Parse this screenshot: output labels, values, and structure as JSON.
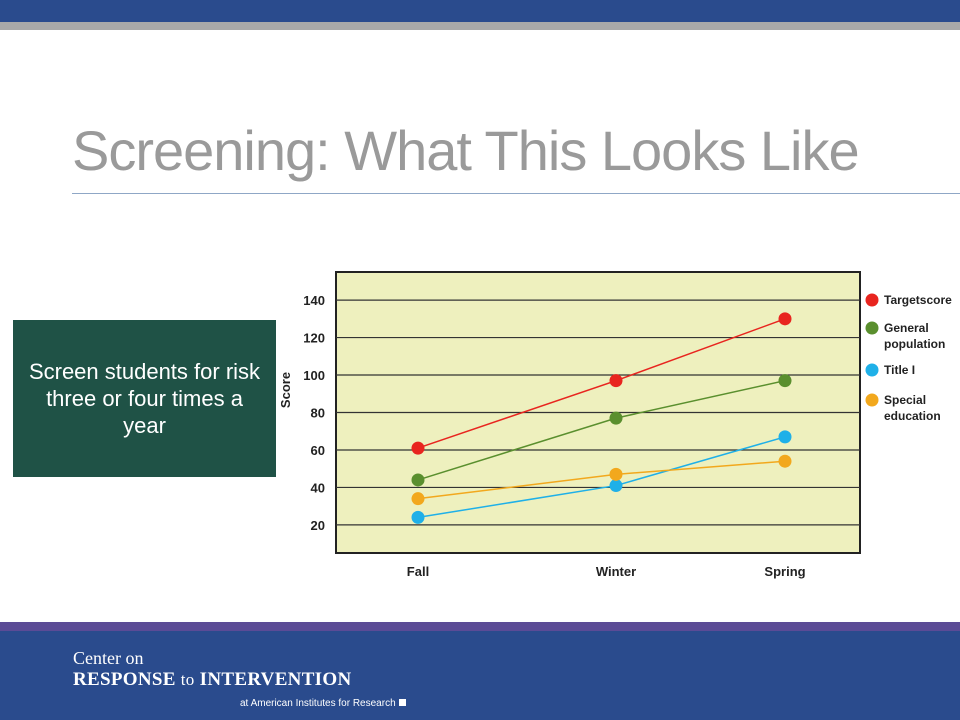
{
  "slide": {
    "title": "Screening: What This Looks Like",
    "callout": "Screen students for risk three or four times a year"
  },
  "footer": {
    "logo_line1": "Center on",
    "logo_word1": "RESPONSE",
    "logo_word2": "to",
    "logo_word3": "INTERVENTION",
    "logo_line3": "at American Institutes for Research"
  },
  "colors": {
    "header": "#2a4b8d",
    "footer_stripe": "#5b4b96",
    "callout_bg": "#1f5246",
    "plot_bg": "#eef0be",
    "target": "#e8251f",
    "general": "#5a8f2e",
    "title1": "#1fb0e8",
    "special": "#f2a81d"
  },
  "chart_data": {
    "type": "line",
    "categories": [
      "Fall",
      "Winter",
      "Spring"
    ],
    "series": [
      {
        "name": "Targetscore",
        "values": [
          61,
          97,
          130
        ],
        "color": "#e8251f"
      },
      {
        "name": "General population",
        "values": [
          44,
          77,
          97
        ],
        "color": "#5a8f2e"
      },
      {
        "name": "Title I",
        "values": [
          24,
          41,
          67
        ],
        "color": "#1fb0e8"
      },
      {
        "name": "Special education",
        "values": [
          34,
          47,
          54
        ],
        "color": "#f2a81d"
      }
    ],
    "ylabel": "Score",
    "yticks": [
      20,
      40,
      60,
      80,
      100,
      120,
      140
    ],
    "ylim": [
      5,
      155
    ],
    "grid": true,
    "legend": "right"
  }
}
